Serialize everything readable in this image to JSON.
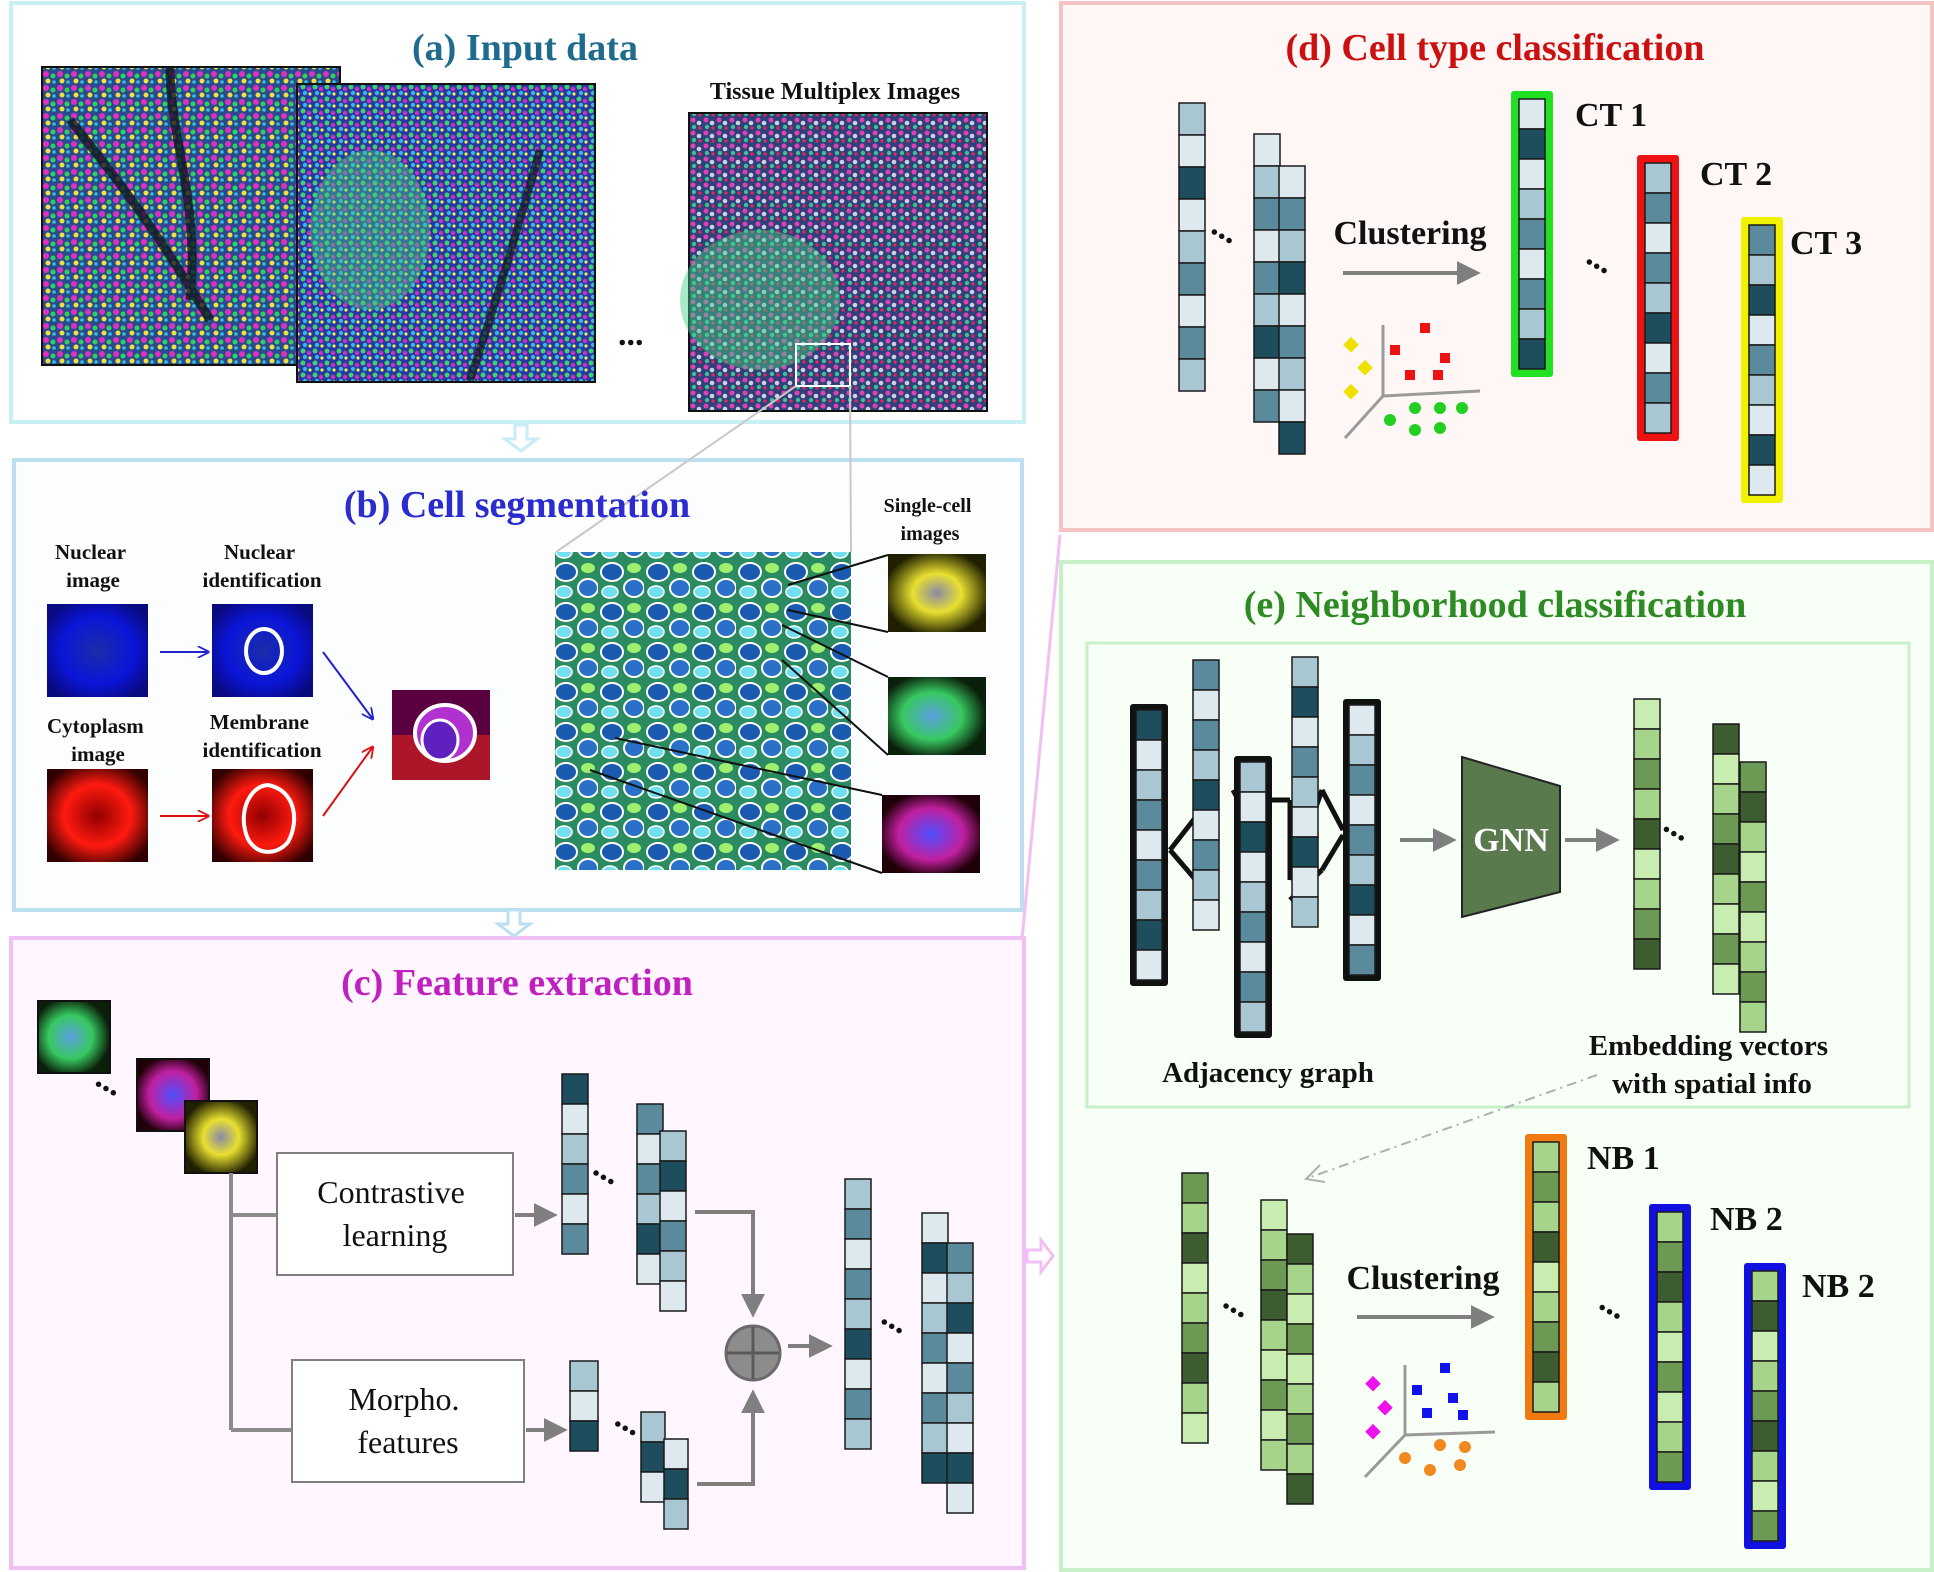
{
  "panels": {
    "a": {
      "title": "(a) Input data",
      "color": "#1f6b8e",
      "subtitle": "Tissue Multiplex Images"
    },
    "b": {
      "title": "(b) Cell segmentation",
      "color": "#2b2bd0",
      "nuclear_image": [
        "Nuclear",
        "image"
      ],
      "nuclear_identification": [
        "Nuclear",
        "identification"
      ],
      "cytoplasm_image": [
        "Cytoplasm",
        "image"
      ],
      "membrane_identification": [
        "Membrane",
        "identification"
      ],
      "single_cell_images": [
        "Single-cell",
        "images"
      ]
    },
    "c": {
      "title": "(c)  Feature extraction",
      "color": "#c020c0",
      "contrastive": [
        "Contrastive",
        "learning"
      ],
      "morpho": [
        "Morpho.",
        "features"
      ]
    },
    "d": {
      "title": "(d) Cell type classification",
      "color": "#cc1010",
      "clustering": "Clustering",
      "clusters": [
        {
          "label": "CT 1",
          "border": "#22e022"
        },
        {
          "label": "CT 2",
          "border": "#ee1111"
        },
        {
          "label": "CT 3",
          "border": "#f2f200"
        }
      ]
    },
    "e": {
      "title": "(e) Neighborhood classification",
      "color": "#2e8a22",
      "gnn": "GNN",
      "adjacency": "Adjacency graph",
      "embedding": [
        "Embedding vectors",
        "with spatial info"
      ],
      "clustering": "Clustering",
      "clusters": [
        {
          "label": "NB 1",
          "border": "#f07a10"
        },
        {
          "label": "NB 2",
          "border": "#1010e0"
        },
        {
          "label": "NB 2",
          "border": "#1010e0"
        }
      ]
    }
  },
  "ellipsis": "...",
  "colors": {
    "dark_blue": "#1e4d5e",
    "mid_blue": "#5a8a9c",
    "light_blue": "#a9c7d2",
    "pale_blue": "#dde9ee",
    "green_dark": "#3d5c30",
    "green_mid": "#6c9a55",
    "green_light": "#a6d48a",
    "green_pale": "#c9ecb0",
    "arrow_gray": "#7f7f7f",
    "gnn_fill": "#5a7a4e"
  }
}
